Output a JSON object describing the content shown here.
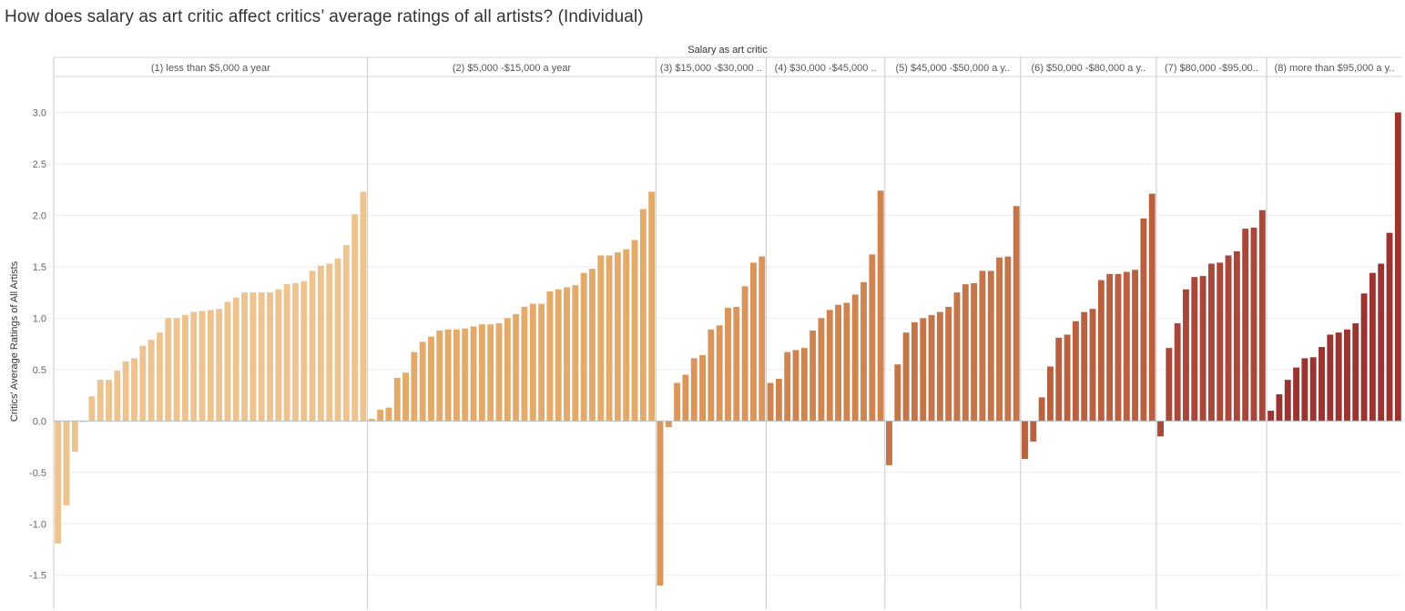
{
  "page": {
    "title": "How does salary as art critic affect critics’ average ratings of all artists? (Individual)"
  },
  "chart_data": {
    "type": "bar",
    "title": "How does salary as art critic affect critics’ average ratings of all artists? (Individual)",
    "column_header": "Salary as art critic",
    "ylabel": "Critics' Average Ratings of All Artists",
    "xlabel": "",
    "ylim": [
      -1.83,
      3.35
    ],
    "yticks": [
      "3.0",
      "2.5",
      "2.0",
      "1.5",
      "1.0",
      "0.5",
      "0.0",
      "-0.5",
      "-1.0",
      "-1.5"
    ],
    "ytick_values": [
      3.0,
      2.5,
      2.0,
      1.5,
      1.0,
      0.5,
      0.0,
      -0.5,
      -1.0,
      -1.5
    ],
    "grid": true,
    "legend": "none",
    "panels": [
      {
        "label": "(1) less than $5,000 a year",
        "color": "#EDC48F",
        "values": [
          -1.19,
          -0.82,
          -0.3,
          0.0,
          0.24,
          0.4,
          0.4,
          0.49,
          0.58,
          0.61,
          0.73,
          0.79,
          0.86,
          1.0,
          1.0,
          1.03,
          1.06,
          1.07,
          1.08,
          1.09,
          1.16,
          1.2,
          1.25,
          1.25,
          1.25,
          1.25,
          1.28,
          1.33,
          1.34,
          1.36,
          1.46,
          1.51,
          1.53,
          1.58,
          1.71,
          2.01,
          2.23
        ]
      },
      {
        "label": "(2) $5,000 -$15,000 a year",
        "color": "#E4AA69",
        "values": [
          0.02,
          0.11,
          0.13,
          0.42,
          0.47,
          0.67,
          0.77,
          0.82,
          0.88,
          0.89,
          0.89,
          0.9,
          0.92,
          0.94,
          0.94,
          0.95,
          1.0,
          1.04,
          1.11,
          1.14,
          1.14,
          1.26,
          1.28,
          1.3,
          1.32,
          1.44,
          1.48,
          1.61,
          1.61,
          1.64,
          1.67,
          1.76,
          2.06,
          2.23
        ]
      },
      {
        "label": "(3) $15,000 -$30,000 ..",
        "color": "#D9955A",
        "values": [
          -1.6,
          -0.06,
          0.37,
          0.45,
          0.61,
          0.64,
          0.89,
          0.93,
          1.1,
          1.11,
          1.31,
          1.54,
          1.6
        ]
      },
      {
        "label": "(4) $30,000 -$45,000 ..",
        "color": "#CF8550",
        "values": [
          0.37,
          0.41,
          0.67,
          0.69,
          0.71,
          0.88,
          1.0,
          1.08,
          1.13,
          1.15,
          1.23,
          1.35,
          1.62,
          2.24
        ]
      },
      {
        "label": "(5) $45,000 -$50,000 a y..",
        "color": "#C4764A",
        "values": [
          -0.43,
          0.55,
          0.86,
          0.96,
          1.0,
          1.03,
          1.06,
          1.11,
          1.25,
          1.33,
          1.34,
          1.46,
          1.46,
          1.59,
          1.6,
          2.09
        ]
      },
      {
        "label": "(6) $50,000 -$80,000 a y..",
        "color": "#B8603F",
        "values": [
          -0.37,
          -0.2,
          0.23,
          0.53,
          0.81,
          0.84,
          0.97,
          1.06,
          1.09,
          1.37,
          1.43,
          1.43,
          1.45,
          1.47,
          1.97,
          2.21
        ]
      },
      {
        "label": "(7) $80,000 -$95,00..",
        "color": "#A9473A",
        "values": [
          -0.15,
          0.71,
          0.95,
          1.28,
          1.4,
          1.41,
          1.53,
          1.54,
          1.61,
          1.65,
          1.87,
          1.88,
          2.05
        ]
      },
      {
        "label": "(8) more than $95,000 a y..",
        "color": "#9B3330",
        "values": [
          0.1,
          0.26,
          0.4,
          0.52,
          0.61,
          0.62,
          0.72,
          0.84,
          0.86,
          0.89,
          0.95,
          1.24,
          1.44,
          1.53,
          1.83,
          3.0
        ]
      }
    ]
  }
}
